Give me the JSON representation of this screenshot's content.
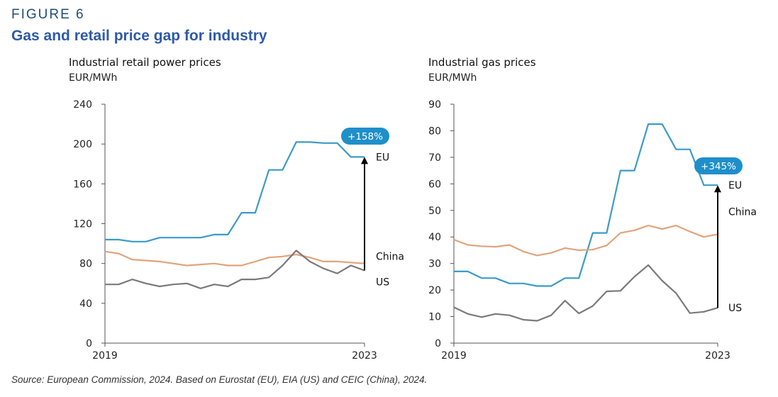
{
  "figure": {
    "label": "FIGURE 6",
    "title": "Gas and retail price gap for industry",
    "source": "Source: European Commission, 2024. Based on Eurostat (EU), EIA (US) and CEIC (China), 2024."
  },
  "colors": {
    "EU": "#3a9bc8",
    "China": "#e0a47c",
    "US": "#7a7a7a",
    "badge": "#1e8fcb",
    "axis": "#555555"
  },
  "chart_data": [
    {
      "type": "line",
      "title": "Industrial retail power prices",
      "ylabel": "EUR/MWh",
      "ylim": [
        0,
        240
      ],
      "yticks": [
        "0",
        "40",
        "80",
        "120",
        "160",
        "200",
        "240"
      ],
      "x_labels": [
        "2019",
        "2023"
      ],
      "series": [
        {
          "name": "EU",
          "values": [
            104,
            104,
            102,
            102,
            106,
            106,
            106,
            106,
            109,
            109,
            131,
            131,
            174,
            174,
            202,
            202,
            201,
            201,
            187,
            187
          ]
        },
        {
          "name": "China",
          "values": [
            92,
            90,
            84,
            83,
            82,
            80,
            78,
            79,
            80,
            78,
            78,
            82,
            86,
            87,
            89,
            86,
            82,
            82,
            81,
            80
          ]
        },
        {
          "name": "US",
          "values": [
            59,
            59,
            64,
            60,
            57,
            59,
            60,
            55,
            59,
            57,
            64,
            64,
            66,
            78,
            93,
            82,
            75,
            70,
            78,
            73
          ]
        }
      ],
      "annotation": {
        "text": "+158%",
        "from_series": "US",
        "to_series": "EU"
      }
    },
    {
      "type": "line",
      "title": "Industrial gas prices",
      "ylabel": "EUR/MWh",
      "ylim": [
        0,
        90
      ],
      "yticks": [
        "0",
        "10",
        "20",
        "30",
        "40",
        "50",
        "60",
        "70",
        "80",
        "90"
      ],
      "x_labels": [
        "2019",
        "2023"
      ],
      "series": [
        {
          "name": "EU",
          "values": [
            27,
            27,
            24.5,
            24.5,
            22.5,
            22.5,
            21.5,
            21.5,
            24.5,
            24.5,
            41.5,
            41.5,
            65,
            65,
            82.5,
            82.5,
            73,
            73,
            59.5,
            59.5
          ]
        },
        {
          "name": "China",
          "values": [
            39,
            37,
            36.5,
            36.3,
            37,
            34.5,
            33,
            34,
            35.8,
            35,
            35.2,
            36.8,
            41.5,
            42.5,
            44.3,
            43,
            44.3,
            42,
            40,
            41
          ]
        },
        {
          "name": "US",
          "values": [
            13.5,
            11,
            9.8,
            11,
            10.5,
            8.8,
            8.4,
            10.5,
            16,
            11.2,
            14,
            19.5,
            19.7,
            25,
            29.4,
            23.5,
            18.8,
            11.3,
            11.8,
            13.3
          ]
        }
      ],
      "annotation": {
        "text": "+345%",
        "from_series": "US",
        "to_series": "EU"
      }
    }
  ]
}
